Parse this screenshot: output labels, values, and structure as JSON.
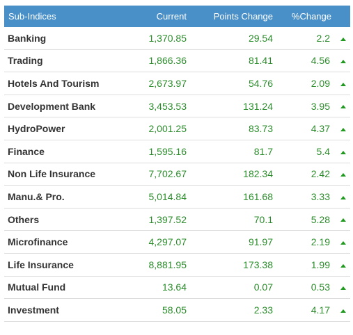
{
  "table": {
    "headers": {
      "name": "Sub-Indices",
      "current": "Current",
      "points": "Points Change",
      "percent": "%Change"
    },
    "rows": [
      {
        "name": "Banking",
        "current": "1,370.85",
        "points": "29.54",
        "percent": "2.2",
        "trend": "up-arrow-icon"
      },
      {
        "name": "Trading",
        "current": "1,866.36",
        "points": "81.41",
        "percent": "4.56",
        "trend": "up-arrow-icon"
      },
      {
        "name": "Hotels And Tourism",
        "current": "2,673.97",
        "points": "54.76",
        "percent": "2.09",
        "trend": "up-arrow-icon"
      },
      {
        "name": "Development Bank",
        "current": "3,453.53",
        "points": "131.24",
        "percent": "3.95",
        "trend": "up-arrow-icon"
      },
      {
        "name": "HydroPower",
        "current": "2,001.25",
        "points": "83.73",
        "percent": "4.37",
        "trend": "up-arrow-icon"
      },
      {
        "name": "Finance",
        "current": "1,595.16",
        "points": "81.7",
        "percent": "5.4",
        "trend": "up-arrow-icon"
      },
      {
        "name": "Non Life Insurance",
        "current": "7,702.67",
        "points": "182.34",
        "percent": "2.42",
        "trend": "up-arrow-icon"
      },
      {
        "name": "Manu.& Pro.",
        "current": "5,014.84",
        "points": "161.68",
        "percent": "3.33",
        "trend": "up-arrow-icon"
      },
      {
        "name": "Others",
        "current": "1,397.52",
        "points": "70.1",
        "percent": "5.28",
        "trend": "up-arrow-icon"
      },
      {
        "name": "Microfinance",
        "current": "4,297.07",
        "points": "91.97",
        "percent": "2.19",
        "trend": "up-arrow-icon"
      },
      {
        "name": "Life Insurance",
        "current": "8,881.95",
        "points": "173.38",
        "percent": "1.99",
        "trend": "up-arrow-icon"
      },
      {
        "name": "Mutual Fund",
        "current": "13.64",
        "points": "0.07",
        "percent": "0.53",
        "trend": "up-arrow-icon"
      },
      {
        "name": "Investment",
        "current": "58.05",
        "points": "2.33",
        "percent": "4.17",
        "trend": "up-arrow-icon"
      }
    ]
  },
  "colors": {
    "header_bg": "#4a90c8",
    "header_text": "#ffffff",
    "gain_text": "#2a8c2a",
    "up_arrow": "#1f9a1f",
    "row_divider": "#dcdcdc"
  }
}
